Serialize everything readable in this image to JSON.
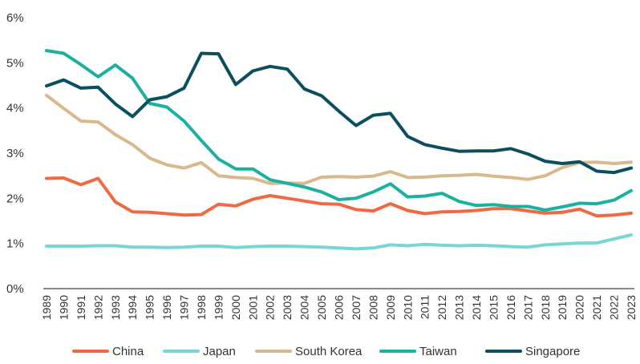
{
  "chart_data": {
    "type": "line",
    "x": [
      "1989",
      "1990",
      "1991",
      "1992",
      "1993",
      "1994",
      "1995",
      "1996",
      "1997",
      "1998",
      "1999",
      "2000",
      "2001",
      "2002",
      "2003",
      "2004",
      "2005",
      "2006",
      "2007",
      "2008",
      "2009",
      "2010",
      "2011",
      "2012",
      "2013",
      "2014",
      "2015",
      "2016",
      "2017",
      "2018",
      "2019",
      "2020",
      "2021",
      "2022",
      "2023"
    ],
    "ylim": [
      0,
      6
    ],
    "yticks": [
      0,
      1,
      2,
      3,
      4,
      5,
      6
    ],
    "ytick_labels": [
      "0%",
      "1%",
      "2%",
      "3%",
      "4%",
      "5%",
      "6%"
    ],
    "grid": false,
    "legend_position": "bottom",
    "series": [
      {
        "name": "China",
        "color": "#ef6a43",
        "values": [
          2.44,
          2.45,
          2.3,
          2.44,
          1.92,
          1.7,
          1.69,
          1.66,
          1.63,
          1.64,
          1.87,
          1.83,
          1.98,
          2.06,
          2.0,
          1.94,
          1.88,
          1.87,
          1.75,
          1.72,
          1.88,
          1.73,
          1.66,
          1.7,
          1.71,
          1.73,
          1.77,
          1.77,
          1.72,
          1.67,
          1.69,
          1.76,
          1.61,
          1.63,
          1.67
        ]
      },
      {
        "name": "Japan",
        "color": "#79d6d6",
        "values": [
          0.94,
          0.94,
          0.94,
          0.95,
          0.95,
          0.92,
          0.92,
          0.91,
          0.92,
          0.94,
          0.94,
          0.91,
          0.93,
          0.94,
          0.94,
          0.93,
          0.92,
          0.9,
          0.88,
          0.9,
          0.97,
          0.95,
          0.98,
          0.96,
          0.95,
          0.96,
          0.95,
          0.93,
          0.92,
          0.97,
          0.99,
          1.01,
          1.01,
          1.1,
          1.19
        ]
      },
      {
        "name": "South Korea",
        "color": "#d8b98d",
        "values": [
          4.28,
          3.99,
          3.71,
          3.69,
          3.41,
          3.19,
          2.89,
          2.74,
          2.67,
          2.79,
          2.5,
          2.46,
          2.44,
          2.33,
          2.34,
          2.33,
          2.47,
          2.48,
          2.47,
          2.49,
          2.59,
          2.46,
          2.47,
          2.5,
          2.51,
          2.53,
          2.49,
          2.46,
          2.42,
          2.5,
          2.68,
          2.79,
          2.8,
          2.77,
          2.8
        ]
      },
      {
        "name": "Taiwan",
        "color": "#1cb0a0",
        "values": [
          5.27,
          5.21,
          4.96,
          4.69,
          4.95,
          4.66,
          4.1,
          4.02,
          3.71,
          3.28,
          2.87,
          2.65,
          2.65,
          2.41,
          2.33,
          2.25,
          2.14,
          1.97,
          2.0,
          2.14,
          2.32,
          2.03,
          2.05,
          2.11,
          1.93,
          1.84,
          1.86,
          1.82,
          1.82,
          1.74,
          1.81,
          1.89,
          1.88,
          1.96,
          2.17
        ]
      },
      {
        "name": "Singapore",
        "color": "#0b4f5f",
        "values": [
          4.49,
          4.62,
          4.44,
          4.46,
          4.09,
          3.81,
          4.18,
          4.25,
          4.44,
          5.21,
          5.2,
          4.52,
          4.82,
          4.92,
          4.86,
          4.42,
          4.27,
          3.93,
          3.61,
          3.84,
          3.88,
          3.37,
          3.19,
          3.11,
          3.04,
          3.05,
          3.05,
          3.1,
          2.98,
          2.82,
          2.77,
          2.81,
          2.6,
          2.57,
          2.67
        ]
      }
    ]
  }
}
